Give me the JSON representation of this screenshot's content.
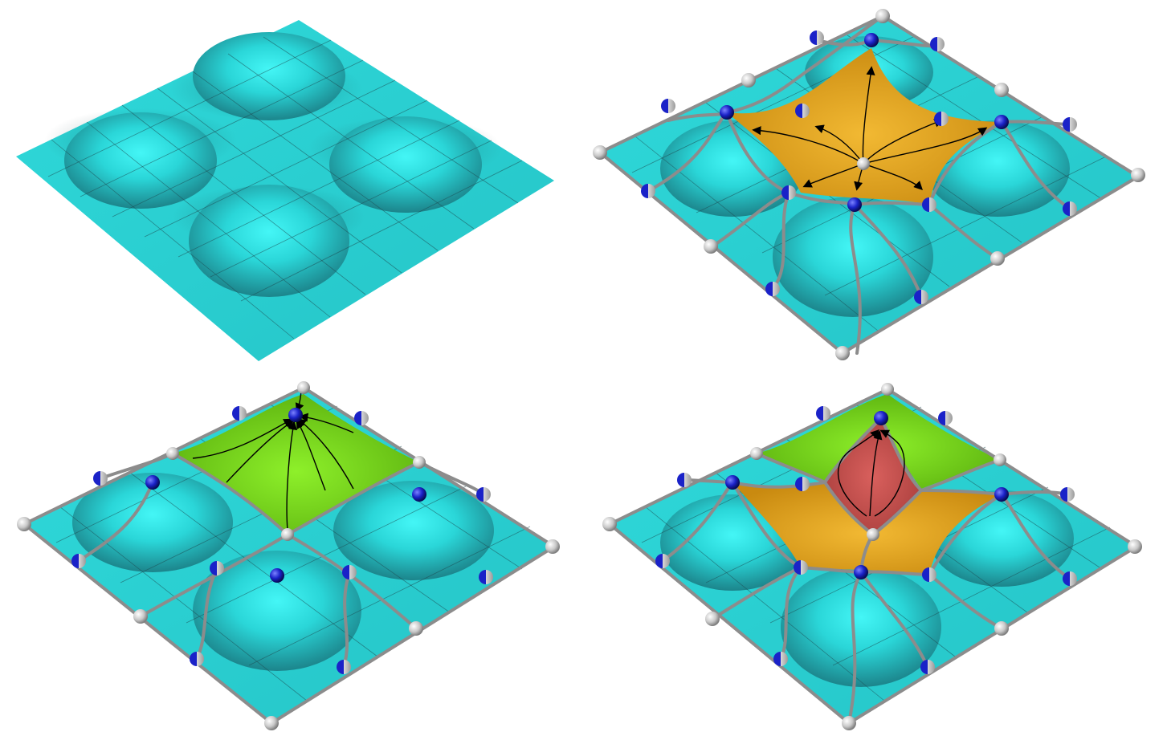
{
  "colors": {
    "base": "#2ad4d6",
    "base_light": "#3df2f2",
    "base_dark": "#123f44",
    "orange": "#e7a41c",
    "green": "#7ee11a",
    "red": "#c85250",
    "node_gray": "#d8d8d8",
    "node_blue": "#1a22c8",
    "edge": "#8c8c8c"
  },
  "panels": [
    {
      "id": "top-left",
      "highlight": "none",
      "features": [
        "surface",
        "bumps"
      ]
    },
    {
      "id": "top-right",
      "highlight": "orange",
      "features": [
        "surface",
        "edge-network",
        "nodes",
        "outward-arrows"
      ]
    },
    {
      "id": "bottom-left",
      "highlight": "green",
      "features": [
        "surface",
        "edge-network",
        "nodes",
        "converging-arrows"
      ]
    },
    {
      "id": "bottom-right",
      "highlight": "red",
      "features": [
        "surface",
        "edge-network",
        "nodes",
        "loop-arrows"
      ]
    }
  ]
}
